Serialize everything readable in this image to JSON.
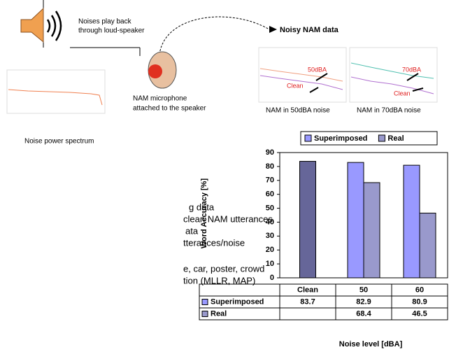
{
  "figure": {
    "speaker_note": [
      "Noises play back",
      "through loud-speaker"
    ],
    "noisy_title": "Noisy NAM data",
    "microphone_note": [
      "NAM microphone",
      "attached to the speaker"
    ],
    "spectrum_caption": "Noise power spectrum",
    "plots": [
      {
        "caption": "NAM in 50dBA noise",
        "noise_tag": "50dBA",
        "clean_tag": "Clean"
      },
      {
        "caption": "NAM in 70dBA noise",
        "noise_tag": "70dBA",
        "clean_tag": "Clean"
      }
    ]
  },
  "bullets": [
    "g data",
    "clean NAM utterances",
    "ata",
    "tterances/noise",
    "e, car, poster, crowd",
    "tion (MLLR, MAP)"
  ],
  "chart_data": {
    "type": "bar",
    "y_label": "Word Accuracy [%]",
    "x_label": "Noise level [dBA]",
    "categories": [
      "Clean",
      "50",
      "60"
    ],
    "series": [
      {
        "name": "Superimposed",
        "color": "#9999ff",
        "colors": [
          "#666699",
          "#9999ff",
          "#9999ff"
        ],
        "values": [
          83.7,
          82.9,
          80.9
        ]
      },
      {
        "name": "Real",
        "color": "#9999cc",
        "values": [
          null,
          68.4,
          46.5
        ]
      }
    ],
    "ylim": [
      0,
      90
    ],
    "yticks": [
      0,
      10,
      20,
      30,
      40,
      50,
      60,
      70,
      80,
      90
    ],
    "grid": false,
    "legend": "top",
    "data_table": true
  }
}
